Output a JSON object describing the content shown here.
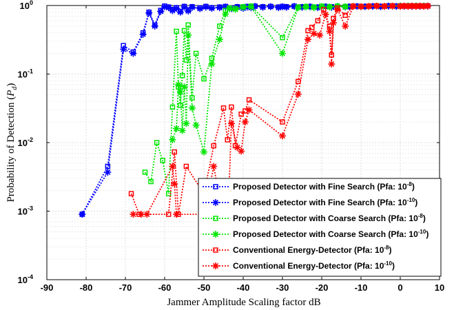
{
  "chart_data": {
    "type": "line",
    "xlabel": "Jammer Amplitude Scaling factor dB",
    "ylabel_main": "Probability of Detection (",
    "ylabel_sym": "P",
    "ylabel_sub": "d",
    "ylabel_end": ")",
    "x_scale": "linear",
    "y_scale": "log",
    "xlim": [
      -90,
      10
    ],
    "ylim": [
      0.0001,
      1
    ],
    "grid": true,
    "legend_position": "bottom-right",
    "x_ticks": [
      "-90",
      "-80",
      "-70",
      "-60",
      "-50",
      "-40",
      "-30",
      "-20",
      "-10",
      "0",
      "10"
    ],
    "y_ticks": [
      {
        "base": "10",
        "exp": "0"
      },
      {
        "base": "10",
        "exp": "-1"
      },
      {
        "base": "10",
        "exp": "-2"
      },
      {
        "base": "10",
        "exp": "-3"
      },
      {
        "base": "10",
        "exp": "-4"
      }
    ],
    "series": [
      {
        "name": "Proposed Detector with Fine Search (Pfa: ",
        "pfa_exp": "-8",
        "color": "#0000ff",
        "marker": "square",
        "x": [
          -81,
          -74.5,
          -70.5,
          -68,
          -65.5,
          -64,
          -62.5,
          -61,
          -60,
          -59,
          -58,
          -57,
          -56,
          -55,
          -54,
          -53,
          -51,
          -49.5,
          -48,
          -46,
          -44.5,
          -43,
          -41.5,
          -40,
          -39,
          -38,
          -37,
          -35,
          -33,
          -31,
          -30,
          -29,
          -27,
          -25,
          -23,
          -21,
          -19,
          -17.5,
          -16,
          -14,
          -13,
          -11,
          -9,
          -7,
          -5,
          -3,
          -1,
          0,
          1,
          2,
          3,
          4,
          5,
          6,
          7
        ],
        "y": [
          0.0009,
          0.0045,
          0.26,
          0.21,
          0.4,
          0.8,
          0.52,
          0.85,
          0.98,
          0.95,
          0.88,
          0.93,
          0.82,
          0.97,
          0.86,
          0.96,
          0.92,
          0.97,
          0.93,
          0.95,
          0.97,
          0.92,
          0.96,
          0.93,
          0.97,
          0.95,
          0.98,
          0.96,
          0.97,
          0.95,
          0.97,
          0.96,
          0.98,
          0.96,
          0.97,
          0.95,
          0.97,
          0.96,
          0.98,
          0.96,
          0.97,
          0.98,
          0.97,
          0.98,
          0.97,
          0.99,
          0.98,
          0.99,
          0.98,
          0.99,
          0.98,
          0.99,
          0.98,
          0.99,
          0.99
        ]
      },
      {
        "name": "Proposed Detector with Fine Search (Pfa: ",
        "pfa_exp": "-10",
        "color": "#0000ff",
        "marker": "star",
        "x": [
          -81,
          -74.5,
          -70.5,
          -68,
          -65.5,
          -64,
          -62.5,
          -61,
          -60,
          -59,
          -58,
          -57,
          -56,
          -55,
          -54,
          -53,
          -51,
          -49.5,
          -48,
          -46,
          -44.5,
          -43,
          -41.5,
          -40,
          -39,
          -38,
          -37,
          -35,
          -33,
          -31,
          -30,
          -29,
          -27,
          -25,
          -23,
          -21,
          -19,
          -17.5,
          -16,
          -14,
          -13,
          -11,
          -9,
          -7,
          -5,
          -3,
          -1,
          0,
          1,
          2,
          3,
          4,
          5,
          6,
          7
        ],
        "y": [
          0.0009,
          0.0037,
          0.23,
          0.2,
          0.38,
          0.78,
          0.5,
          0.82,
          0.96,
          0.93,
          0.84,
          0.91,
          0.8,
          0.95,
          0.83,
          0.94,
          0.9,
          0.95,
          0.91,
          0.93,
          0.95,
          0.9,
          0.94,
          0.91,
          0.95,
          0.93,
          0.97,
          0.94,
          0.96,
          0.93,
          0.96,
          0.94,
          0.97,
          0.94,
          0.96,
          0.93,
          0.96,
          0.94,
          0.97,
          0.95,
          0.96,
          0.97,
          0.96,
          0.97,
          0.96,
          0.98,
          0.97,
          0.98,
          0.97,
          0.98,
          0.97,
          0.98,
          0.97,
          0.98,
          0.98
        ]
      },
      {
        "name": "Proposed Detector with Coarse Search (Pfa: ",
        "pfa_exp": "-8",
        "color": "#00e600",
        "marker": "square",
        "x": [
          -65,
          -63.5,
          -62,
          -60.5,
          -59,
          -58,
          -57,
          -56.5,
          -56,
          -55.5,
          -55,
          -54.5,
          -54,
          -53,
          -52,
          -50,
          -48,
          -46,
          -44.5,
          -43.5,
          -42,
          -40,
          -38,
          -30,
          -26,
          -24,
          -22,
          -20,
          -18,
          -16,
          -14,
          -12,
          -10,
          -8,
          -6,
          -4,
          -2,
          0,
          2,
          4,
          6
        ],
        "y": [
          0.0037,
          0.0027,
          0.01,
          0.0055,
          0.0018,
          0.033,
          0.42,
          0.065,
          0.035,
          0.095,
          0.43,
          0.16,
          0.52,
          0.045,
          0.2,
          0.085,
          0.17,
          0.5,
          0.85,
          0.92,
          0.9,
          0.96,
          0.98,
          0.34,
          0.95,
          0.97,
          0.95,
          0.98,
          0.96,
          0.98,
          0.97,
          0.98,
          0.97,
          0.98,
          0.99,
          0.98,
          0.99,
          0.99,
          0.99,
          0.99,
          0.99
        ]
      },
      {
        "name": "Proposed Detector with Coarse Search (Pfa: ",
        "pfa_exp": "-10",
        "color": "#00e600",
        "marker": "star",
        "x": [
          -58,
          -57,
          -56.5,
          -56,
          -55.5,
          -55,
          -54.5,
          -54,
          -53,
          -52,
          -50,
          -48,
          -46,
          -44.5,
          -43.5,
          -42,
          -40,
          -38,
          -30,
          -26,
          -24,
          -22,
          -20,
          -18,
          -16,
          -14,
          -12,
          -10,
          -8,
          -6,
          -4,
          -2,
          0,
          2,
          4,
          6
        ],
        "y": [
          0.011,
          0.016,
          0.07,
          0.055,
          0.015,
          0.065,
          0.019,
          0.37,
          0.032,
          0.018,
          0.0073,
          0.14,
          0.32,
          0.75,
          0.9,
          0.88,
          0.94,
          0.96,
          0.2,
          0.93,
          0.95,
          0.93,
          0.96,
          0.95,
          0.97,
          0.96,
          0.97,
          0.96,
          0.97,
          0.98,
          0.97,
          0.98,
          0.98,
          0.98,
          0.98,
          0.98
        ]
      },
      {
        "name": "Conventional Energy-Detector (Pfa: ",
        "pfa_exp": "-8",
        "color": "#ff0000",
        "marker": "square",
        "x": [
          -68.5,
          -66.5,
          -59,
          -57.5,
          -56.5,
          -54.5,
          -50,
          -47.5,
          -45,
          -44,
          -43,
          -42,
          -40.5,
          -39.5,
          -38.5,
          -30,
          -26,
          -23.5,
          -22.5,
          -21,
          -19.5,
          -18,
          -17.5,
          -17,
          -16,
          -14,
          -12,
          -10,
          -8,
          -6,
          -4,
          -2,
          0,
          1,
          2,
          3,
          4,
          5,
          6,
          7
        ],
        "y": [
          0.0018,
          0.0009,
          0.0009,
          0.0073,
          0.0009,
          0.0045,
          0.0018,
          0.009,
          0.032,
          0.011,
          0.033,
          0.009,
          0.026,
          0.029,
          0.042,
          0.02,
          0.078,
          0.43,
          0.48,
          0.6,
          0.87,
          0.5,
          0.19,
          0.65,
          0.92,
          0.72,
          0.98,
          0.97,
          0.98,
          0.99,
          0.98,
          0.99,
          0.98,
          0.99,
          0.98,
          0.99,
          0.98,
          0.99,
          0.98,
          0.99
        ]
      },
      {
        "name": "Conventional Energy-Detector (Pfa: ",
        "pfa_exp": "-10",
        "color": "#ff0000",
        "marker": "star",
        "x": [
          -68,
          -66,
          -64.5,
          -58,
          -57.5,
          -57,
          -50,
          -47.5,
          -45,
          -44,
          -43,
          -41.5,
          -40.5,
          -39.5,
          -38.5,
          -30,
          -26,
          -23.5,
          -22,
          -20.5,
          -19,
          -18,
          -17.5,
          -17,
          -16,
          -14,
          -12,
          -10,
          -8,
          -6,
          -4,
          -2,
          0,
          1,
          2,
          3,
          4,
          5,
          6,
          7
        ],
        "y": [
          0.0009,
          0.0009,
          0.0009,
          0.0045,
          0.0025,
          0.0009,
          0.0009,
          0.0045,
          0.0007,
          0.0005,
          0.019,
          0.0085,
          0.0075,
          0.02,
          0.03,
          0.0125,
          0.051,
          0.32,
          0.39,
          0.37,
          0.74,
          0.42,
          0.14,
          0.56,
          0.88,
          0.5,
          0.97,
          0.96,
          0.97,
          0.98,
          0.97,
          0.98,
          0.97,
          0.98,
          0.97,
          0.98,
          0.97,
          0.98,
          0.97,
          0.98
        ]
      }
    ]
  }
}
